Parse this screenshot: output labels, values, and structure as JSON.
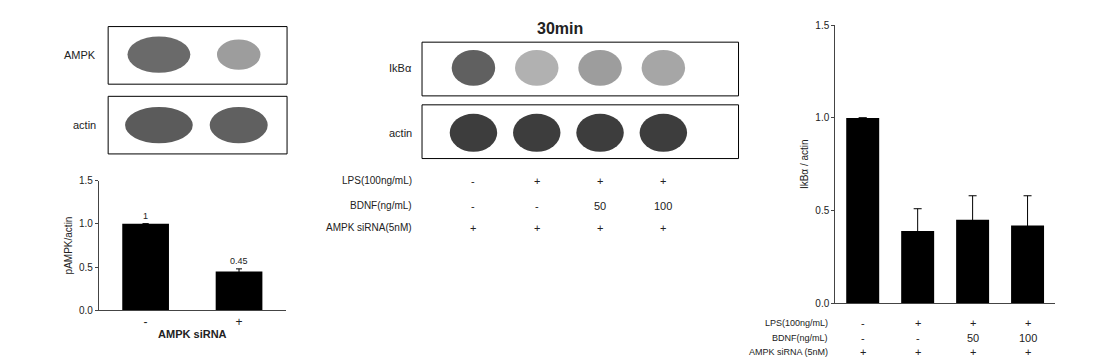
{
  "chart_data": [
    {
      "type": "blot",
      "lanes": [
        "AMPK",
        "actin"
      ]
    },
    {
      "type": "bar",
      "categories": [
        "-",
        "+"
      ],
      "values": [
        1.0,
        0.45
      ],
      "errors": [
        0.0,
        0.03
      ],
      "value_labels": [
        "1",
        "0.45"
      ],
      "data_labels": true,
      "color": "#000000",
      "ylabel": "pAMPK/actin",
      "xlabel": "AMPK siRNA",
      "ylim": [
        0,
        1.5
      ],
      "yticks": [
        {
          "value": 0,
          "label": "0.0"
        },
        0.5,
        {
          "value": 1,
          "label": "1.0"
        },
        1.5
      ],
      "grid": false
    },
    {
      "type": "blot",
      "title": "30min",
      "lanes": [
        "IkBα",
        "actin"
      ],
      "rows": [
        {
          "label": "LPS(100ng/mL)",
          "values": [
            "-",
            "+",
            "+",
            "+"
          ]
        },
        {
          "label": "BDNF(ng/mL)",
          "values": [
            "-",
            "-",
            "50",
            "100"
          ]
        },
        {
          "label": "AMPK siRNA(5nM)",
          "values": [
            "+",
            "+",
            "+",
            "+"
          ]
        }
      ]
    },
    {
      "type": "bar",
      "values": [
        1.0,
        0.39,
        0.45,
        0.42
      ],
      "errors": [
        0.0,
        0.12,
        0.13,
        0.16
      ],
      "color": "#000000",
      "ylabel": "IkBα / actin",
      "ylim": [
        0,
        1.5
      ],
      "yticks": [
        {
          "value": 0,
          "label": "0.0"
        },
        0.5,
        {
          "value": 1,
          "label": "1.0"
        },
        1.5
      ],
      "grid": false,
      "tick_labels": "y",
      "rows": [
        {
          "label": "LPS(100ng/mL)",
          "values": [
            "-",
            "+",
            "+",
            "+"
          ]
        },
        {
          "label": "BDNF(ng/mL)",
          "values": [
            "-",
            "-",
            "50",
            "100"
          ]
        },
        {
          "label": "AMPK siRNA (5nM)",
          "values": [
            "+",
            "+",
            "+",
            "+"
          ]
        }
      ]
    }
  ]
}
